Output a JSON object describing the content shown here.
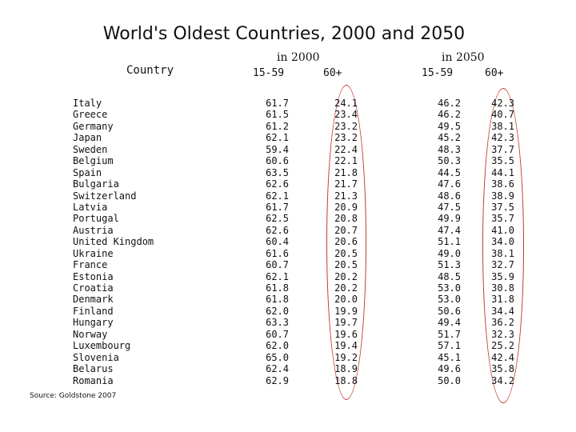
{
  "title": "World's Oldest Countries, 2000 and 2050",
  "headers": {
    "country": "Country",
    "group_2000": "in 2000",
    "group_2050": "in 2050",
    "age_15_59": "15-59",
    "age_60_plus": "60+"
  },
  "highlight_color": "#c0392b",
  "source": "Source: Goldstone 2007",
  "columns": {
    "country": [
      "Italy",
      "Greece",
      "Germany",
      "Japan",
      "Sweden",
      "Belgium",
      "Spain",
      "Bulgaria",
      "Switzerland",
      "Latvia",
      "Portugal",
      "Austria",
      "United Kingdom",
      "Ukraine",
      "France",
      "Estonia",
      "Croatia",
      "Denmark",
      "Finland",
      "Hungary",
      "Norway",
      "Luxembourg",
      "Slovenia",
      "Belarus",
      "Romania"
    ],
    "y2000_15_59": [
      "61.7",
      "61.5",
      "61.2",
      "62.1",
      "59.4",
      "60.6",
      "63.5",
      "62.6",
      "62.1",
      "61.7",
      "62.5",
      "62.6",
      "60.4",
      "61.6",
      "60.7",
      "62.1",
      "61.8",
      "61.8",
      "62.0",
      "63.3",
      "60.7",
      "62.0",
      "65.0",
      "62.4",
      "62.9"
    ],
    "y2000_60_plus": [
      "24.1",
      "23.4",
      "23.2",
      "23.2",
      "22.4",
      "22.1",
      "21.8",
      "21.7",
      "21.3",
      "20.9",
      "20.8",
      "20.7",
      "20.6",
      "20.5",
      "20.5",
      "20.2",
      "20.2",
      "20.0",
      "19.9",
      "19.7",
      "19.6",
      "19.4",
      "19.2",
      "18.9",
      "18.8"
    ],
    "y2050_15_59": [
      "46.2",
      "46.2",
      "49.5",
      "45.2",
      "48.3",
      "50.3",
      "44.5",
      "47.6",
      "48.6",
      "47.5",
      "49.9",
      "47.4",
      "51.1",
      "49.0",
      "51.3",
      "48.5",
      "53.0",
      "53.0",
      "50.6",
      "49.4",
      "51.7",
      "57.1",
      "45.1",
      "49.6",
      "50.0"
    ],
    "y2050_60_plus": [
      "42.3",
      "40.7",
      "38.1",
      "42.3",
      "37.7",
      "35.5",
      "44.1",
      "38.6",
      "38.9",
      "37.5",
      "35.7",
      "41.0",
      "34.0",
      "38.1",
      "32.7",
      "35.9",
      "30.8",
      "31.8",
      "34.4",
      "36.2",
      "32.3",
      "25.2",
      "42.4",
      "35.8",
      "34.2"
    ]
  }
}
